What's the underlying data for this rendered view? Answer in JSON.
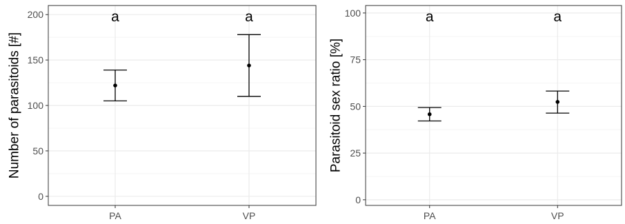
{
  "chart_data": [
    {
      "type": "scatter",
      "subtype": "mean-with-error-bars",
      "title": "",
      "xlabel": "",
      "ylabel": "Number of parasitoids [#]",
      "categories": [
        "PA",
        "VP"
      ],
      "values": [
        122,
        144
      ],
      "error_low": [
        105,
        110
      ],
      "error_high": [
        139,
        178
      ],
      "annotations": [
        "a",
        "a"
      ],
      "ylim": [
        -10,
        210
      ],
      "yticks": [
        0,
        50,
        100,
        150,
        200
      ],
      "yticklabels": [
        "0",
        "50",
        "100",
        "150",
        "200"
      ],
      "grid": true,
      "legend": "none"
    },
    {
      "type": "scatter",
      "subtype": "mean-with-error-bars",
      "title": "",
      "xlabel": "",
      "ylabel": "Parasitoid sex ratio [%]",
      "categories": [
        "PA",
        "VP"
      ],
      "values": [
        45.8,
        52.4
      ],
      "error_low": [
        42.2,
        46.4
      ],
      "error_high": [
        49.4,
        58.2
      ],
      "annotations": [
        "a",
        "a"
      ],
      "ylim": [
        -3,
        104
      ],
      "yticks": [
        0,
        25,
        50,
        75,
        100
      ],
      "yticklabels": [
        "0",
        "25",
        "50",
        "75",
        "100"
      ],
      "grid": true,
      "legend": "none"
    }
  ],
  "colors": {
    "panel_border": "#333333",
    "grid_major": "#ebebeb",
    "grid_minor": "#f5f5f5",
    "marker": "#000000",
    "tick_text": "#4d4d4d"
  }
}
